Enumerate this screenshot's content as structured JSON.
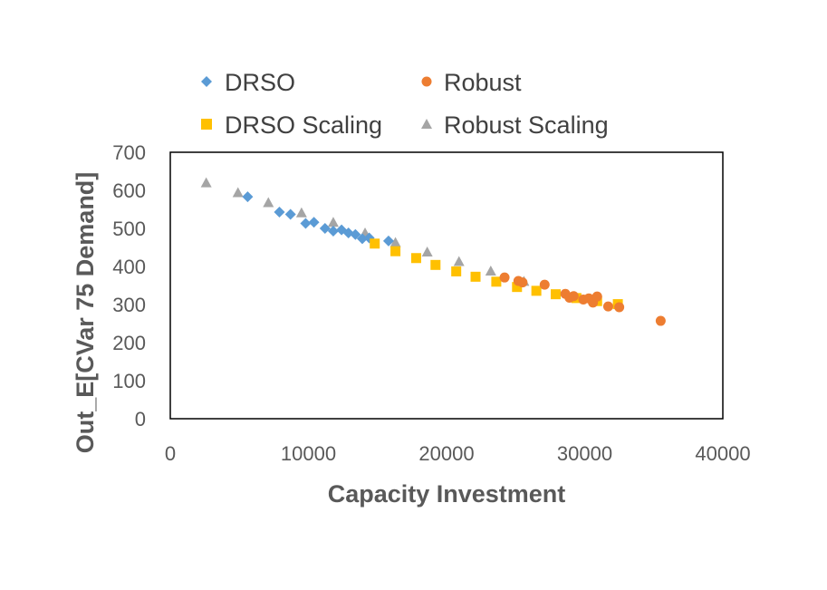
{
  "chart_data": {
    "type": "scatter",
    "title": "",
    "xlabel": "Capacity Investment",
    "ylabel": "Out_E[CVar 75 Demand]",
    "xlim": [
      0,
      40000
    ],
    "ylim": [
      0,
      700
    ],
    "xticks": [
      0,
      10000,
      20000,
      30000,
      40000
    ],
    "yticks": [
      0,
      100,
      200,
      300,
      400,
      500,
      600,
      700
    ],
    "legend_position": "top",
    "series": [
      {
        "name": "DRSO",
        "marker": "diamond",
        "color": "#5B9BD5",
        "points": [
          [
            5600,
            583
          ],
          [
            7900,
            543
          ],
          [
            8700,
            537
          ],
          [
            9800,
            513
          ],
          [
            10400,
            516
          ],
          [
            11200,
            500
          ],
          [
            11800,
            493
          ],
          [
            12400,
            496
          ],
          [
            12900,
            488
          ],
          [
            13400,
            484
          ],
          [
            13900,
            473
          ],
          [
            14400,
            475
          ],
          [
            15800,
            467
          ]
        ]
      },
      {
        "name": "Robust",
        "marker": "circle",
        "color": "#ED7D31",
        "points": [
          [
            24200,
            371
          ],
          [
            25200,
            362
          ],
          [
            25500,
            358
          ],
          [
            27100,
            352
          ],
          [
            28600,
            328
          ],
          [
            28900,
            318
          ],
          [
            29200,
            322
          ],
          [
            29900,
            313
          ],
          [
            30300,
            316
          ],
          [
            30600,
            305
          ],
          [
            30900,
            321
          ],
          [
            31700,
            295
          ],
          [
            32500,
            293
          ],
          [
            35500,
            257
          ]
        ]
      },
      {
        "name": "DRSO Scaling",
        "marker": "square",
        "color": "#FFC000",
        "points": [
          [
            14800,
            460
          ],
          [
            16300,
            440
          ],
          [
            17800,
            422
          ],
          [
            19200,
            404
          ],
          [
            20700,
            387
          ],
          [
            22100,
            373
          ],
          [
            23600,
            360
          ],
          [
            25100,
            346
          ],
          [
            26500,
            336
          ],
          [
            27900,
            327
          ],
          [
            29400,
            317
          ],
          [
            30900,
            309
          ],
          [
            32400,
            301
          ]
        ]
      },
      {
        "name": "Robust Scaling",
        "marker": "triangle",
        "color": "#A5A5A5",
        "points": [
          [
            2600,
            620
          ],
          [
            4900,
            594
          ],
          [
            7100,
            568
          ],
          [
            9500,
            541
          ],
          [
            11800,
            516
          ],
          [
            14100,
            488
          ],
          [
            16300,
            463
          ],
          [
            18600,
            438
          ],
          [
            20900,
            413
          ],
          [
            23200,
            388
          ],
          [
            25600,
            361
          ]
        ]
      }
    ]
  }
}
